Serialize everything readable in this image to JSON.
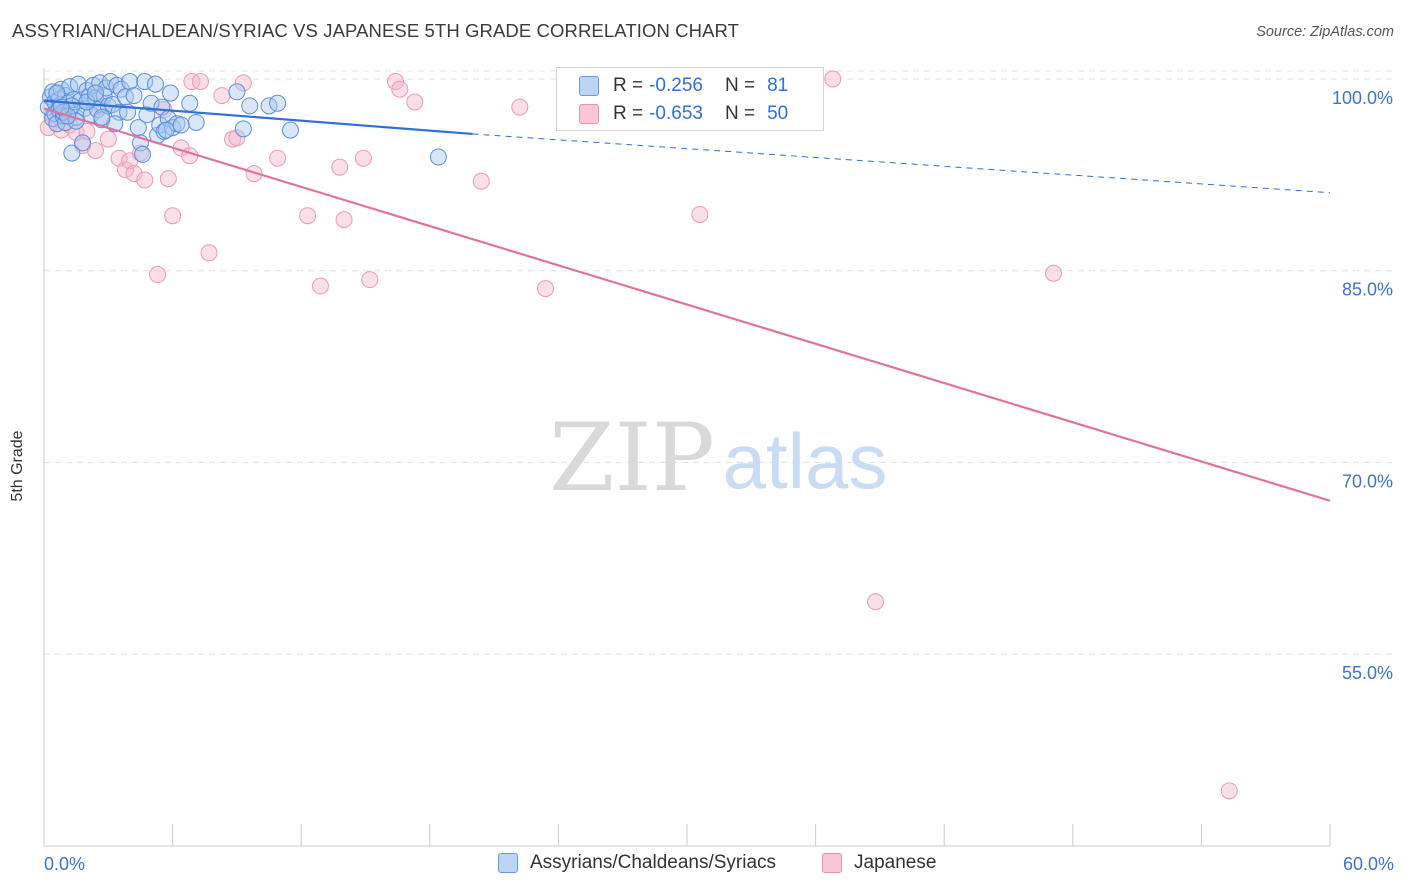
{
  "title": "ASSYRIAN/CHALDEAN/SYRIAC VS JAPANESE 5TH GRADE CORRELATION CHART",
  "source": "Source: ZipAtlas.com",
  "watermark": {
    "zip": "ZIP",
    "atlas": "atlas"
  },
  "colors": {
    "blue": "#2f6fd6",
    "blue_fill": "#a8c8f0",
    "pink": "#e0739a",
    "pink_fill": "#f4b8cc",
    "tick_text": "#3b74c8",
    "grid": "#dddddd"
  },
  "legend": {
    "rows": [
      {
        "r_label": "R =",
        "r_value": "-0.256",
        "n_label": "N =",
        "n_value": "81"
      },
      {
        "r_label": "R =",
        "r_value": "-0.653",
        "n_label": "N =",
        "n_value": "50"
      }
    ]
  },
  "bottom_legend": {
    "items": [
      {
        "label": "Assyrians/Chaldeans/Syriacs"
      },
      {
        "label": "Japanese"
      }
    ]
  },
  "chart_data": {
    "type": "scatter",
    "title": "ASSYRIAN/CHALDEAN/SYRIAC VS JAPANESE 5TH GRADE CORRELATION CHART",
    "xlabel": "",
    "ylabel": "5th Grade",
    "xlim": [
      0,
      60
    ],
    "ylim": [
      40,
      101
    ],
    "x_tick_labels": [
      "0.0%",
      "60.0%"
    ],
    "y_ticks": [
      100,
      85,
      70,
      55
    ],
    "y_tick_labels": [
      "100.0%",
      "85.0%",
      "70.0%",
      "55.0%"
    ],
    "grid": true,
    "legend_placement": "top-center",
    "series": [
      {
        "name": "Assyrians/Chaldeans/Syriacs",
        "color": "#2f6fd6",
        "trend": {
          "x": [
            0,
            20
          ],
          "y": [
            98.3,
            95.7
          ],
          "dashed_extension": {
            "x": [
              20,
              60
            ],
            "y": [
              95.7,
              91.1
            ]
          }
        },
        "points": [
          [
            0.2,
            97.8
          ],
          [
            0.3,
            98.6
          ],
          [
            0.4,
            96.9
          ],
          [
            0.4,
            99.0
          ],
          [
            0.5,
            98.2
          ],
          [
            0.5,
            97.3
          ],
          [
            0.6,
            98.9
          ],
          [
            0.6,
            96.5
          ],
          [
            0.7,
            98.4
          ],
          [
            0.7,
            97.6
          ],
          [
            0.8,
            99.2
          ],
          [
            0.8,
            98.0
          ],
          [
            0.9,
            97.1
          ],
          [
            1.0,
            98.7
          ],
          [
            1.0,
            96.6
          ],
          [
            1.1,
            98.1
          ],
          [
            1.2,
            99.4
          ],
          [
            1.2,
            97.5
          ],
          [
            1.3,
            94.2
          ],
          [
            1.4,
            98.4
          ],
          [
            1.5,
            97.0
          ],
          [
            1.6,
            99.6
          ],
          [
            1.7,
            98.3
          ],
          [
            1.8,
            95.0
          ],
          [
            1.9,
            97.7
          ],
          [
            2.0,
            99.1
          ],
          [
            2.1,
            98.6
          ],
          [
            2.2,
            97.2
          ],
          [
            2.3,
            99.5
          ],
          [
            2.4,
            98.5
          ],
          [
            2.5,
            97.6
          ],
          [
            2.6,
            99.7
          ],
          [
            2.7,
            96.8
          ],
          [
            2.8,
            98.7
          ],
          [
            2.9,
            99.3
          ],
          [
            3.0,
            97.9
          ],
          [
            3.1,
            99.8
          ],
          [
            3.2,
            98.0
          ],
          [
            3.4,
            99.5
          ],
          [
            3.5,
            97.4
          ],
          [
            3.6,
            99.2
          ],
          [
            3.8,
            98.6
          ],
          [
            4.0,
            99.8
          ],
          [
            4.2,
            98.7
          ],
          [
            4.4,
            96.2
          ],
          [
            4.5,
            95.0
          ],
          [
            4.7,
            99.8
          ],
          [
            4.8,
            97.2
          ],
          [
            5.0,
            98.1
          ],
          [
            5.2,
            99.6
          ],
          [
            5.3,
            95.6
          ],
          [
            5.4,
            96.4
          ],
          [
            5.5,
            97.8
          ],
          [
            5.6,
            95.9
          ],
          [
            5.8,
            96.9
          ],
          [
            5.9,
            98.9
          ],
          [
            6.0,
            96.2
          ],
          [
            6.2,
            96.5
          ],
          [
            6.8,
            98.1
          ],
          [
            7.1,
            96.6
          ],
          [
            9.0,
            99.0
          ],
          [
            9.3,
            96.1
          ],
          [
            9.6,
            97.9
          ],
          [
            10.5,
            97.9
          ],
          [
            10.9,
            98.1
          ],
          [
            11.5,
            96.0
          ],
          [
            18.4,
            93.9
          ],
          [
            4.6,
            94.1
          ],
          [
            3.3,
            96.5
          ],
          [
            1.5,
            96.7
          ],
          [
            2.7,
            97.0
          ],
          [
            0.9,
            97.4
          ],
          [
            1.3,
            97.9
          ],
          [
            2.0,
            98.2
          ],
          [
            0.6,
            98.9
          ],
          [
            5.7,
            96.0
          ],
          [
            3.9,
            97.4
          ],
          [
            1.1,
            97.1
          ],
          [
            6.4,
            96.4
          ],
          [
            2.4,
            98.9
          ],
          [
            0.8,
            97.8
          ]
        ]
      },
      {
        "name": "Japanese",
        "color": "#e0739a",
        "trend": {
          "x": [
            0,
            60
          ],
          "y": [
            97.7,
            67.0
          ]
        },
        "points": [
          [
            0.2,
            96.2
          ],
          [
            0.4,
            97.2
          ],
          [
            0.6,
            96.8
          ],
          [
            0.8,
            96.0
          ],
          [
            1.0,
            97.1
          ],
          [
            1.2,
            96.4
          ],
          [
            1.5,
            95.8
          ],
          [
            1.8,
            94.8
          ],
          [
            2.0,
            95.9
          ],
          [
            2.4,
            94.4
          ],
          [
            2.7,
            97.9
          ],
          [
            3.0,
            95.3
          ],
          [
            3.5,
            93.8
          ],
          [
            3.8,
            92.9
          ],
          [
            4.0,
            93.6
          ],
          [
            4.2,
            92.6
          ],
          [
            4.5,
            94.2
          ],
          [
            4.7,
            92.1
          ],
          [
            5.3,
            84.7
          ],
          [
            5.6,
            97.6
          ],
          [
            5.8,
            92.2
          ],
          [
            6.0,
            89.3
          ],
          [
            6.4,
            94.6
          ],
          [
            6.8,
            94.0
          ],
          [
            6.9,
            99.8
          ],
          [
            7.3,
            99.8
          ],
          [
            7.7,
            86.4
          ],
          [
            8.3,
            98.7
          ],
          [
            8.8,
            95.3
          ],
          [
            9.0,
            95.4
          ],
          [
            9.3,
            99.7
          ],
          [
            9.8,
            92.6
          ],
          [
            10.9,
            93.8
          ],
          [
            12.3,
            89.3
          ],
          [
            12.9,
            83.8
          ],
          [
            13.8,
            93.1
          ],
          [
            14.0,
            89.0
          ],
          [
            14.9,
            93.8
          ],
          [
            15.2,
            84.3
          ],
          [
            16.4,
            99.8
          ],
          [
            16.6,
            99.2
          ],
          [
            17.3,
            98.2
          ],
          [
            20.4,
            92.0
          ],
          [
            22.2,
            97.8
          ],
          [
            23.4,
            83.6
          ],
          [
            30.6,
            89.4
          ],
          [
            36.8,
            100.0
          ],
          [
            47.1,
            84.8
          ],
          [
            38.8,
            59.1
          ],
          [
            55.3,
            44.3
          ]
        ]
      }
    ]
  }
}
